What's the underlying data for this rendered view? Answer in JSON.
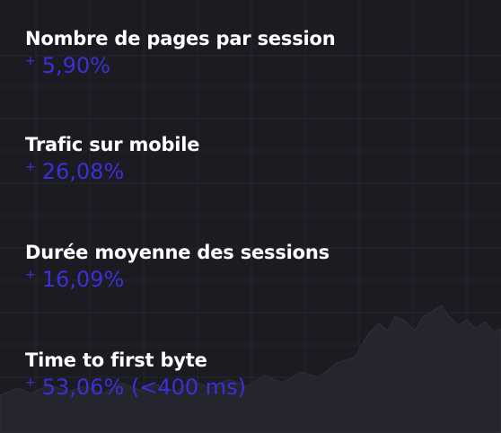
{
  "stats": [
    {
      "title": "Nombre de pages par session",
      "sign": "+",
      "value": "5,90%"
    },
    {
      "title": "Trafic sur mobile",
      "sign": "+",
      "value": "26,08%"
    },
    {
      "title": "Durée moyenne des sessions",
      "sign": "+",
      "value": "16,09%"
    },
    {
      "title": "Time to first byte",
      "sign": "+",
      "value": "53,06% (<400 ms)"
    }
  ],
  "colors": {
    "background": "#1b1b21",
    "title": "#ffffff",
    "accent": "#3b2fd8",
    "grid": "#2a2a33",
    "chart": "#2d2d36"
  }
}
